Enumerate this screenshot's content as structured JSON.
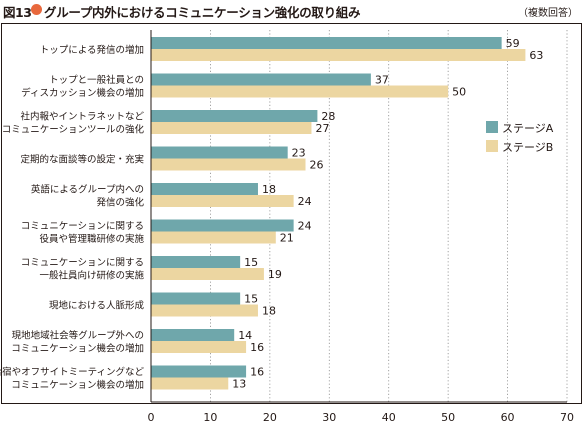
{
  "header": {
    "figure_number": "図13",
    "title": "グループ内外におけるコミュニケーション強化の取り組み",
    "note": "（複数回答）",
    "dot_color": "#e8683c"
  },
  "chart_data": {
    "type": "bar",
    "orientation": "horizontal",
    "categories": [
      [
        "トップによる発信の増加"
      ],
      [
        "トップと一般社員との",
        "ディスカッション機会の増加"
      ],
      [
        "社内報やイントラネットなど",
        "コミュニケーションツールの強化"
      ],
      [
        "定期的な面談等の設定・充実"
      ],
      [
        "英語によるグループ内への",
        "発信の強化"
      ],
      [
        "コミュニケーションに関する",
        "役員や管理職研修の実施"
      ],
      [
        "コミュニケーションに関する",
        "一般社員向け研修の実施"
      ],
      [
        "現地における人脈形成"
      ],
      [
        "現地地域社会等グループ外への",
        "コミュニケーション機会の増加"
      ],
      [
        "合宿やオフサイトミーティングなど",
        "コミュニケーション機会の増加"
      ]
    ],
    "series": [
      {
        "name": "ステージA",
        "color": "#6fa7ab",
        "values": [
          59,
          37,
          28,
          23,
          18,
          24,
          15,
          15,
          14,
          16
        ]
      },
      {
        "name": "ステージB",
        "color": "#ecd6a1",
        "values": [
          63,
          50,
          27,
          26,
          24,
          21,
          19,
          18,
          16,
          13
        ]
      }
    ],
    "xlim": [
      0,
      70
    ],
    "xticks": [
      0,
      10,
      20,
      30,
      40,
      50,
      60,
      70
    ],
    "grid": true,
    "legend_position": "right"
  }
}
